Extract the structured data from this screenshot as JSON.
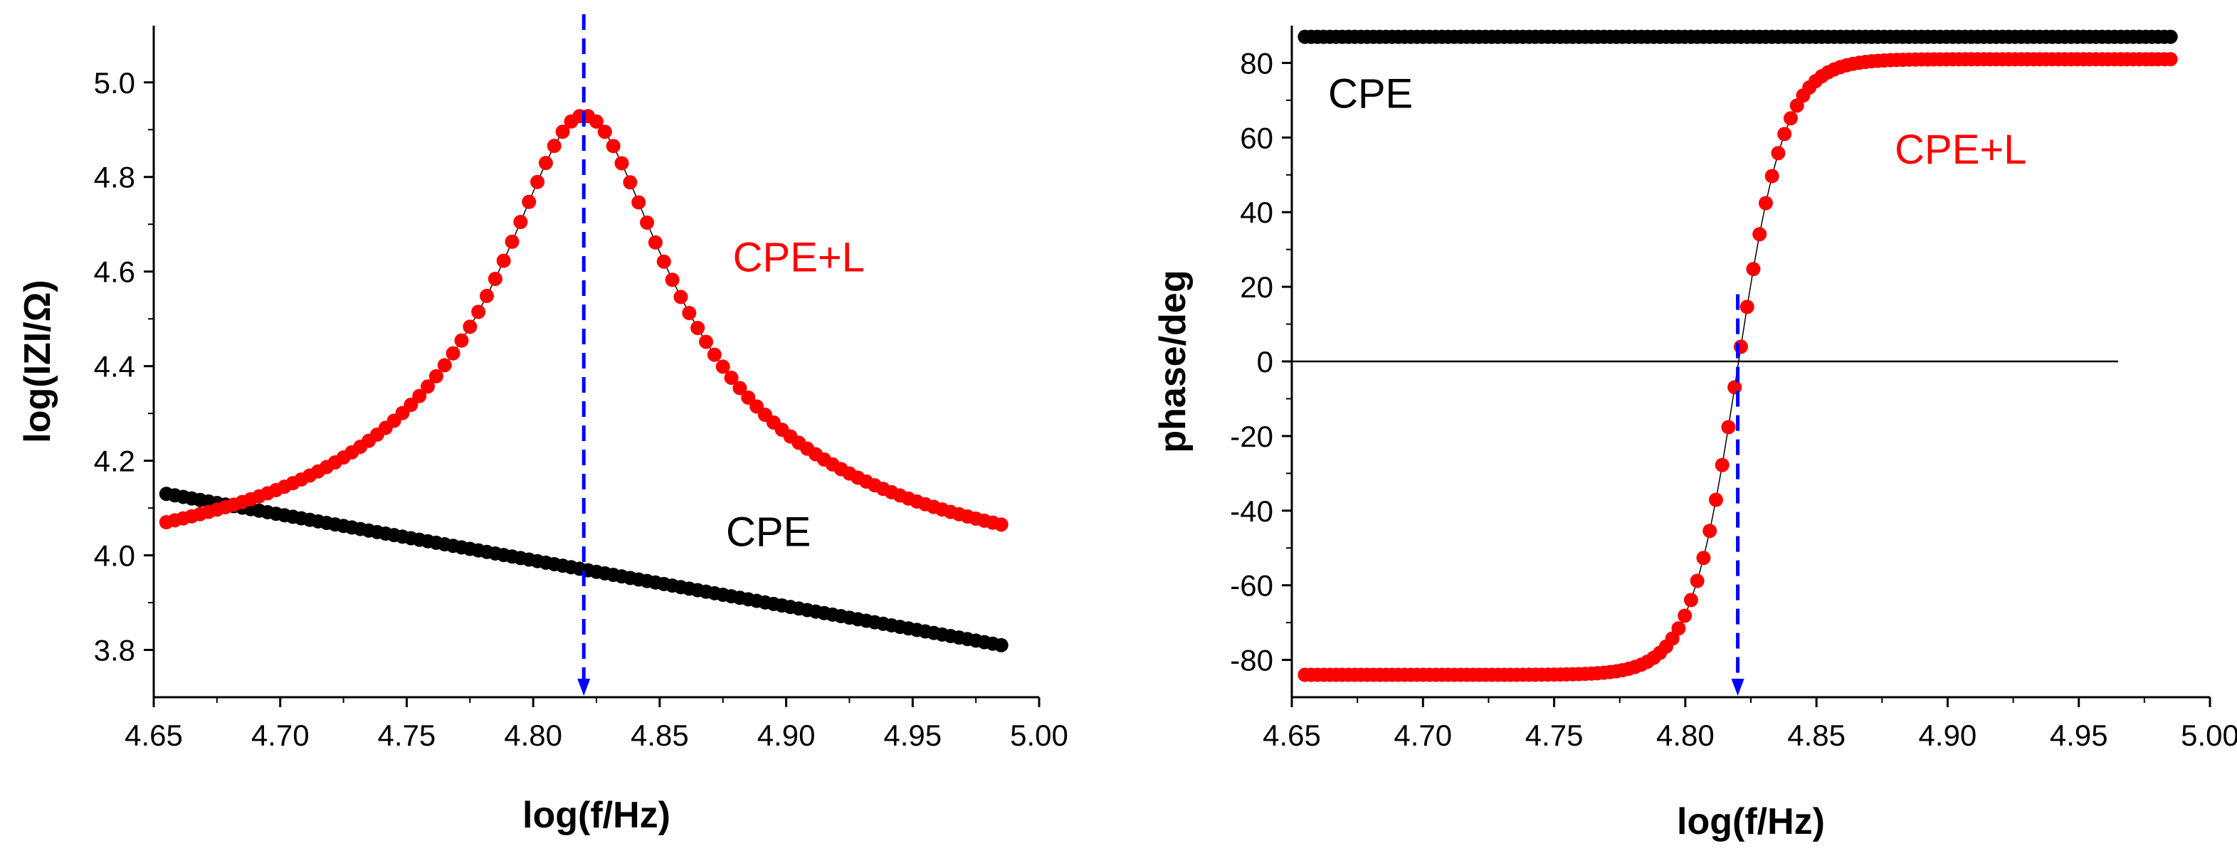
{
  "chart_data": [
    {
      "type": "scatter",
      "title": "",
      "xlabel": "log(f/Hz)",
      "ylabel": "log(IZI/Ω)",
      "xlim": [
        4.65,
        5.0
      ],
      "ylim": [
        3.7,
        5.12
      ],
      "xticks": [
        "4.65",
        "4.70",
        "4.75",
        "4.80",
        "4.85",
        "4.90",
        "4.95",
        "5.00"
      ],
      "yticks": [
        "3.8",
        "4.0",
        "4.2",
        "4.4",
        "4.6",
        "4.8",
        "5.0"
      ],
      "x_start": 4.655,
      "x_end": 4.985,
      "n_points": 100,
      "series": [
        {
          "name": "CPE",
          "color": "#000000",
          "model": "linear",
          "y_start": 4.13,
          "y_end": 3.81
        },
        {
          "name": "CPE+L",
          "color": "#ff0000",
          "model": "resonance",
          "peak_x": 4.82,
          "peak_y": 4.93,
          "y_start": 4.07,
          "y_end": 4.065
        }
      ],
      "marker_line": {
        "x": 4.82,
        "color": "#0000ff",
        "style": "dashed-arrow"
      },
      "annotations": [
        {
          "text": "CPE+L",
          "color": "#ff0000",
          "x": 4.905,
          "y": 4.6
        },
        {
          "text": "CPE",
          "color": "#000000",
          "x": 4.893,
          "y": 4.02
        }
      ]
    },
    {
      "type": "scatter",
      "title": "",
      "xlabel": "log(f/Hz)",
      "ylabel": "phase/deg",
      "xlim": [
        4.65,
        5.0
      ],
      "ylim": [
        -90,
        90
      ],
      "xticks": [
        "4.65",
        "4.70",
        "4.75",
        "4.80",
        "4.85",
        "4.90",
        "4.95",
        "5.00"
      ],
      "yticks": [
        "-80",
        "-60",
        "-40",
        "-20",
        "0",
        "20",
        "40",
        "60",
        "80"
      ],
      "x_start": 4.655,
      "x_end": 4.985,
      "n_points": 140,
      "zero_line": {
        "y": 0,
        "x_end": 4.965
      },
      "series": [
        {
          "name": "CPE",
          "color": "#000000",
          "model": "constant",
          "y_value": 87
        },
        {
          "name": "CPE+L",
          "color": "#ff0000",
          "model": "phase_transition",
          "center_x": 4.82,
          "y_min": -84,
          "y_max": 81
        }
      ],
      "marker_line": {
        "x": 4.82,
        "color": "#0000ff",
        "style": "dashed-arrow"
      },
      "annotations": [
        {
          "text": "CPE",
          "color": "#000000",
          "x": 4.68,
          "y": 68
        },
        {
          "text": "CPE+L",
          "color": "#ff0000",
          "x": 4.905,
          "y": 53
        }
      ]
    }
  ]
}
